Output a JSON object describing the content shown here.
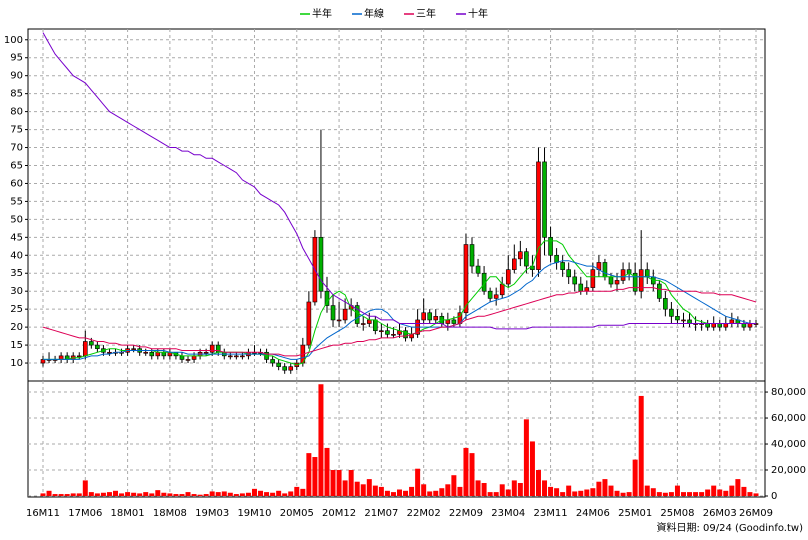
{
  "chart_data": {
    "type": "candlestick",
    "legend": "top",
    "grid": true,
    "up_color": "#ff0000",
    "down_color": "#00b000",
    "ylim": [
      5,
      103
    ],
    "yticks": [
      10,
      15,
      20,
      25,
      30,
      35,
      40,
      45,
      50,
      55,
      60,
      65,
      70,
      75,
      80,
      85,
      90,
      95,
      100
    ],
    "categories": [
      "16M11",
      null,
      null,
      null,
      null,
      null,
      null,
      "17M06",
      null,
      null,
      null,
      null,
      null,
      null,
      "18M01",
      null,
      null,
      null,
      null,
      null,
      null,
      "18M08",
      null,
      null,
      null,
      null,
      null,
      null,
      "19M03",
      null,
      null,
      null,
      null,
      null,
      null,
      "19M10",
      null,
      null,
      null,
      null,
      null,
      null,
      "20M05",
      null,
      null,
      null,
      null,
      null,
      null,
      "20M12",
      null,
      null,
      null,
      null,
      null,
      null,
      "21M07",
      null,
      null,
      null,
      null,
      null,
      null,
      "22M02",
      null,
      null,
      null,
      null,
      null,
      null,
      "22M09",
      null,
      null,
      null,
      null,
      null,
      null,
      "23M04",
      null,
      null,
      null,
      null,
      null,
      null,
      "23M11",
      null,
      null,
      null,
      null,
      null,
      null,
      "24M06",
      null,
      null,
      null,
      null,
      null,
      null,
      "25M01",
      null,
      null,
      null,
      null,
      null,
      null,
      "25M08",
      null,
      null,
      null,
      null,
      null,
      null,
      "26M03",
      null,
      null,
      null,
      null,
      null,
      "26M09"
    ],
    "open": [
      10,
      11,
      11,
      11,
      12,
      11,
      12,
      12,
      16,
      15,
      14,
      13,
      13,
      13,
      13,
      14,
      14,
      13,
      13,
      12,
      13,
      12,
      13,
      12,
      11,
      11,
      12,
      13,
      13,
      15,
      13,
      12,
      12,
      12,
      12,
      13,
      13,
      13,
      11,
      10,
      9,
      8,
      9,
      10,
      15,
      27,
      45,
      30,
      26,
      22,
      22,
      25,
      26,
      21,
      21,
      22,
      19,
      19,
      18,
      18,
      19,
      17,
      18,
      22,
      24,
      22,
      23,
      21,
      22,
      21,
      24,
      43,
      37,
      35,
      30,
      28,
      29,
      32,
      36,
      39,
      41,
      37,
      36,
      66,
      45,
      40,
      38,
      36,
      34,
      32,
      30,
      31,
      36,
      38,
      34,
      32,
      33,
      36,
      35,
      30,
      36,
      34,
      32,
      28,
      25,
      23,
      22,
      22,
      21,
      21,
      21,
      20,
      21,
      20,
      21,
      22,
      21,
      20,
      21
    ],
    "high": [
      12,
      13,
      12,
      13,
      13,
      13,
      13,
      19,
      17,
      16,
      15,
      14,
      14,
      14,
      15,
      15,
      15,
      14,
      14,
      14,
      14,
      14,
      13,
      13,
      12,
      13,
      14,
      14,
      16,
      16,
      14,
      13,
      13,
      13,
      14,
      15,
      14,
      14,
      12,
      11,
      10,
      10,
      11,
      17,
      30,
      47,
      75,
      34,
      29,
      27,
      28,
      28,
      27,
      23,
      24,
      23,
      21,
      21,
      20,
      21,
      20,
      20,
      25,
      28,
      25,
      25,
      24,
      24,
      23,
      26,
      46,
      45,
      39,
      37,
      31,
      31,
      34,
      40,
      43,
      44,
      42,
      40,
      70,
      70,
      48,
      42,
      40,
      38,
      36,
      34,
      33,
      38,
      40,
      39,
      35,
      35,
      38,
      38,
      38,
      47,
      38,
      36,
      33,
      30,
      27,
      25,
      24,
      24,
      23,
      22,
      22,
      23,
      22,
      23,
      24,
      23,
      22,
      22,
      22
    ],
    "low": [
      9,
      10,
      10,
      10,
      10,
      10,
      11,
      11,
      14,
      13,
      12,
      12,
      12,
      12,
      12,
      13,
      12,
      12,
      11,
      11,
      11,
      11,
      11,
      10,
      10,
      10,
      11,
      12,
      12,
      12,
      11,
      11,
      11,
      11,
      11,
      12,
      12,
      10,
      9,
      8,
      7,
      7,
      8,
      9,
      14,
      26,
      28,
      24,
      20,
      20,
      21,
      23,
      20,
      19,
      20,
      18,
      17,
      17,
      17,
      17,
      16,
      16,
      17,
      21,
      21,
      21,
      20,
      19,
      20,
      20,
      22,
      35,
      34,
      29,
      27,
      26,
      28,
      31,
      35,
      37,
      35,
      34,
      34,
      40,
      38,
      36,
      34,
      32,
      30,
      29,
      29,
      30,
      34,
      33,
      31,
      30,
      32,
      33,
      29,
      28,
      32,
      30,
      27,
      23,
      21,
      21,
      20,
      20,
      19,
      19,
      19,
      19,
      19,
      19,
      20,
      20,
      19,
      19,
      20
    ],
    "close": [
      11,
      11,
      11,
      12,
      11,
      12,
      12,
      16,
      15,
      14,
      13,
      13,
      13,
      13,
      14,
      14,
      13,
      13,
      12,
      13,
      12,
      13,
      12,
      11,
      11,
      12,
      13,
      13,
      15,
      13,
      12,
      12,
      12,
      12,
      13,
      13,
      13,
      11,
      10,
      9,
      8,
      9,
      10,
      15,
      27,
      45,
      30,
      26,
      22,
      22,
      25,
      26,
      21,
      21,
      22,
      19,
      19,
      18,
      18,
      19,
      17,
      18,
      22,
      24,
      22,
      23,
      21,
      22,
      21,
      24,
      43,
      37,
      35,
      30,
      28,
      29,
      32,
      36,
      39,
      41,
      37,
      36,
      66,
      45,
      40,
      38,
      36,
      34,
      32,
      30,
      31,
      36,
      38,
      34,
      32,
      33,
      36,
      35,
      30,
      36,
      34,
      32,
      28,
      25,
      23,
      22,
      22,
      21,
      21,
      21,
      20,
      21,
      20,
      21,
      22,
      21,
      20,
      21,
      21
    ],
    "series": [
      {
        "name": "半年",
        "color": "#00cc00",
        "values": [
          11,
          11,
          11,
          11,
          11,
          11.5,
          11.5,
          12,
          12.5,
          13,
          13.5,
          14,
          14,
          13.5,
          13.5,
          13.5,
          13.5,
          13.5,
          13.5,
          13,
          13,
          13,
          12.5,
          12,
          12,
          12,
          12,
          12,
          12.5,
          13,
          13,
          13,
          13,
          13,
          12.5,
          12.5,
          12.5,
          12,
          12,
          11,
          10.5,
          10,
          9.5,
          10,
          13,
          19,
          24,
          27,
          29,
          30,
          29,
          25,
          24,
          23,
          22,
          22,
          21,
          20,
          19.5,
          19,
          18.5,
          18,
          18.5,
          19.5,
          20,
          21,
          22,
          22,
          22.5,
          23,
          26,
          28,
          30,
          32,
          34,
          34,
          32,
          31,
          32,
          34,
          36,
          37,
          42,
          44,
          44,
          44,
          43,
          40,
          38,
          36,
          34,
          34,
          34,
          34,
          34,
          34,
          34,
          35,
          34,
          34,
          34,
          33,
          33,
          32,
          29,
          27,
          25,
          24,
          22,
          21.5,
          21,
          21,
          21,
          21,
          21,
          21,
          21,
          21,
          21
        ]
      },
      {
        "name": "年線",
        "color": "#0066cc",
        "values": [
          11,
          11,
          11,
          11,
          11,
          11,
          11,
          11.5,
          12,
          12,
          12.5,
          12.5,
          13,
          13,
          13.5,
          13.5,
          13.5,
          13.5,
          13.5,
          13.5,
          13.5,
          13,
          13,
          13,
          12.5,
          12.5,
          12.5,
          12.5,
          12.5,
          12.5,
          12.5,
          12.5,
          12.5,
          12.5,
          12.5,
          12.5,
          12.5,
          12.5,
          12.5,
          12,
          11.5,
          11,
          11,
          11.5,
          12,
          14,
          15.5,
          17,
          18,
          19,
          20,
          21.5,
          22.5,
          23.5,
          24.5,
          25,
          25,
          24,
          22,
          21,
          20.5,
          20,
          20,
          20,
          20,
          20,
          20,
          20,
          20.5,
          21,
          23,
          24,
          25,
          26,
          27,
          27.5,
          28,
          28.5,
          29.5,
          30.5,
          32,
          33,
          35,
          36.5,
          37.5,
          38,
          38.5,
          38.5,
          38,
          37.5,
          37,
          37,
          36,
          35,
          34.5,
          34,
          34,
          34,
          34,
          34,
          34,
          34,
          33.5,
          33,
          32,
          31,
          30,
          29,
          28,
          27,
          26,
          25,
          24,
          23,
          22.5,
          22,
          21.5,
          21,
          21
        ]
      },
      {
        "name": "三年",
        "color": "#dd0055",
        "values": [
          20,
          19.5,
          19,
          18.5,
          18,
          17.5,
          17,
          17,
          16.5,
          16,
          16,
          15.5,
          15.5,
          15,
          15,
          15,
          14.5,
          14.5,
          14,
          14,
          14,
          14,
          14,
          13.5,
          13.5,
          13.5,
          13.5,
          13.5,
          13.5,
          13.5,
          13,
          13,
          13,
          13,
          13,
          13,
          13,
          12.5,
          12.5,
          12.5,
          12,
          12,
          12,
          12.5,
          13,
          13.5,
          14,
          14.5,
          15,
          15,
          15.5,
          15.5,
          16,
          16,
          16.5,
          16.5,
          17,
          17,
          17,
          17.5,
          17.5,
          18,
          18.5,
          19,
          19,
          19.5,
          20,
          20,
          20.5,
          21,
          22,
          22.5,
          23,
          23,
          23.5,
          24,
          24.5,
          25,
          25.5,
          26,
          26.5,
          27,
          27.5,
          28,
          28.5,
          29,
          29,
          29.5,
          29.5,
          30,
          30,
          30,
          30,
          30,
          30,
          30.5,
          30.5,
          31,
          31,
          31,
          31,
          31,
          30.5,
          30.5,
          30,
          30,
          30,
          30,
          30,
          29.5,
          29.5,
          29.5,
          29,
          29,
          29,
          28.5,
          28,
          27.5,
          27
        ]
      },
      {
        "name": "十年",
        "color": "#7700cc",
        "values": [
          102,
          99,
          96,
          94,
          92,
          90,
          89,
          88,
          86,
          84,
          82,
          80,
          79,
          78,
          77,
          76,
          75,
          74,
          73,
          72,
          71,
          70,
          70,
          69,
          69,
          68,
          68,
          67,
          67,
          66,
          65,
          64,
          63,
          61,
          60,
          59,
          57,
          56,
          55,
          54,
          52,
          49,
          46,
          42,
          39,
          36,
          33,
          31,
          29,
          28,
          27,
          26,
          25,
          24,
          23,
          23,
          22,
          22,
          22,
          21,
          21,
          21,
          21,
          21,
          21,
          21,
          21,
          20,
          20,
          20,
          20,
          20,
          20,
          20,
          20,
          19.5,
          19.5,
          19.5,
          19.5,
          19.5,
          19.5,
          20,
          20,
          20,
          20,
          20,
          20,
          20,
          20,
          20,
          20,
          20,
          20.5,
          20.5,
          20.5,
          20.5,
          20.5,
          21,
          21,
          21,
          21,
          21,
          21,
          21,
          21,
          21,
          21,
          21,
          21,
          21,
          21,
          21,
          21,
          21,
          21,
          21,
          21,
          21,
          21
        ]
      }
    ],
    "volume": {
      "color": "#ff0000",
      "ylim": [
        0,
        88500
      ],
      "yticks": [
        0,
        {
          "value": 20000,
          "label": "20,000"
        },
        {
          "value": 40000,
          "label": "40,000"
        },
        {
          "value": 60000,
          "label": "60,000"
        },
        {
          "value": 80000,
          "label": "80,000"
        }
      ],
      "values": [
        2000,
        4000,
        1500,
        1500,
        1500,
        2000,
        2000,
        12000,
        3000,
        2000,
        2500,
        3000,
        4000,
        2000,
        3000,
        2500,
        2000,
        3000,
        2000,
        4500,
        2500,
        2000,
        1500,
        1500,
        3000,
        1500,
        1000,
        1500,
        3500,
        3000,
        3500,
        2500,
        1500,
        2000,
        2500,
        5500,
        4000,
        3000,
        2500,
        4000,
        2000,
        3500,
        7000,
        5500,
        33000,
        30000,
        86000,
        37000,
        20000,
        20000,
        12000,
        20000,
        11000,
        9000,
        13000,
        8000,
        7000,
        4000,
        3000,
        5000,
        4000,
        7000,
        21000,
        9000,
        3500,
        4000,
        6000,
        9000,
        16000,
        7000,
        37000,
        33000,
        12000,
        10000,
        3000,
        3000,
        9000,
        5000,
        12000,
        10000,
        59000,
        42000,
        20000,
        12000,
        7000,
        6000,
        3000,
        8000,
        3500,
        4000,
        5000,
        6000,
        11000,
        13000,
        8000,
        4000,
        2500,
        3000,
        28000,
        77000,
        8000,
        6000,
        3000,
        2500,
        3000,
        8000,
        3000,
        3000,
        3000,
        3000,
        5000,
        8000,
        5000,
        4000,
        8000,
        13000,
        7000,
        3000,
        2000
      ]
    },
    "source": "資料日期: 09/24 (Goodinfo.tw)"
  }
}
